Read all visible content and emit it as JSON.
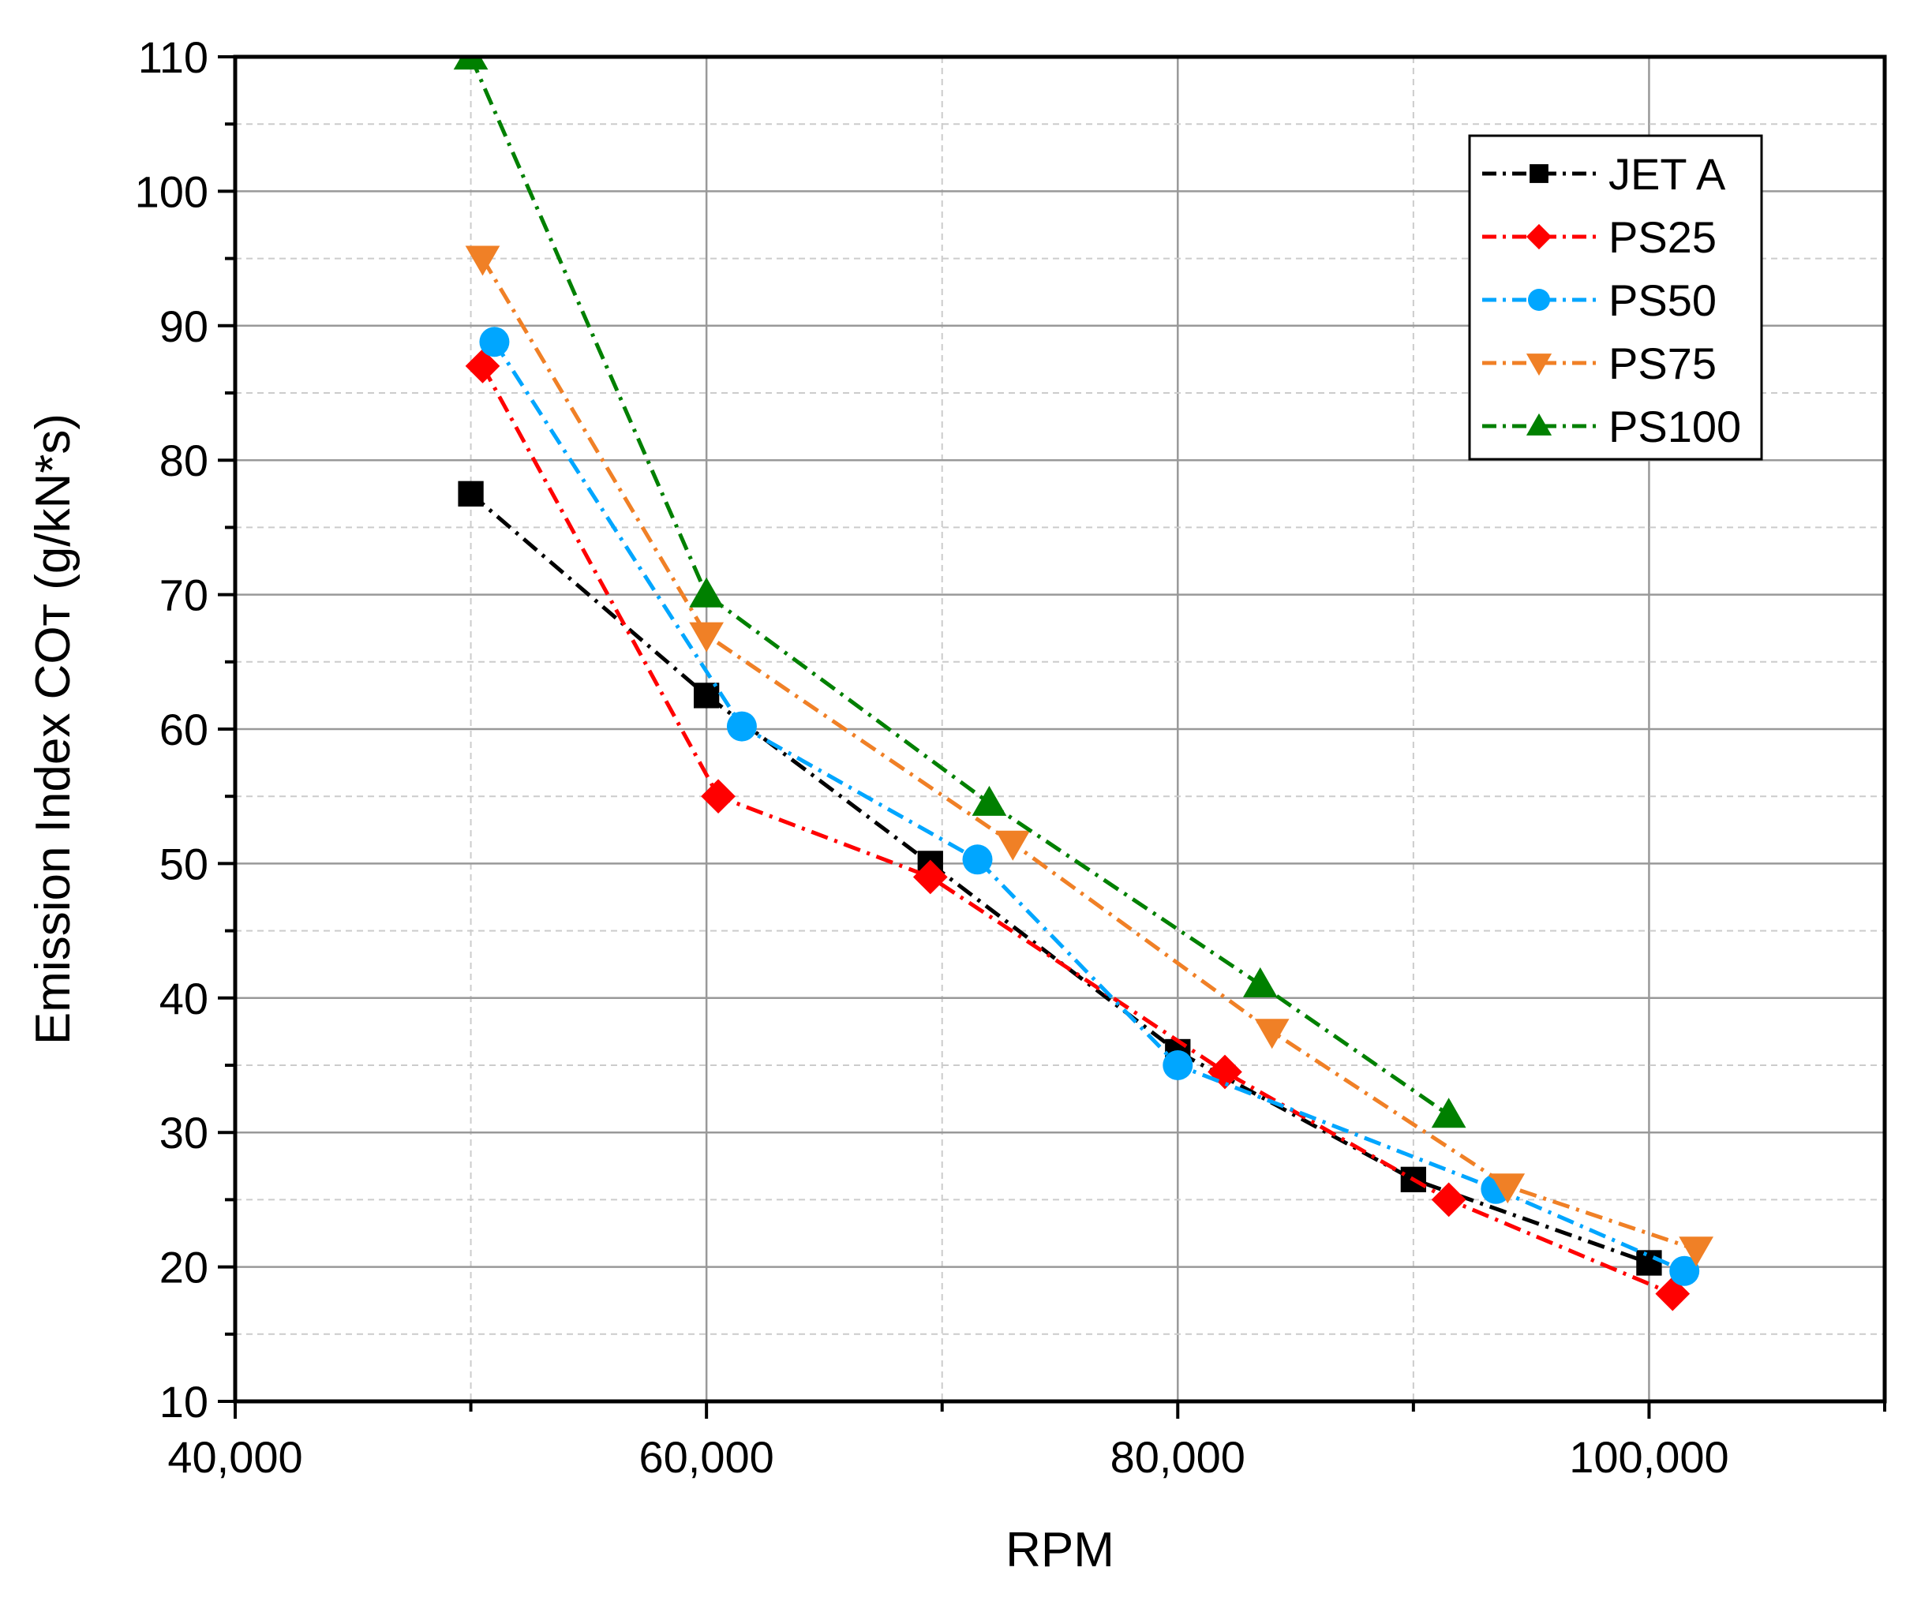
{
  "chart_data": {
    "type": "line",
    "title": "",
    "xlabel": "RPM",
    "ylabel": "Emission Index COᴛ (g/kN*s)",
    "xlim": [
      40000,
      110000
    ],
    "ylim": [
      10,
      110
    ],
    "x_ticks": [
      40000,
      60000,
      80000,
      100000
    ],
    "x_tick_labels": [
      "40,000",
      "60,000",
      "80,000",
      "100,000"
    ],
    "y_ticks": [
      10,
      20,
      30,
      40,
      50,
      60,
      70,
      80,
      90,
      100,
      110
    ],
    "y_tick_labels": [
      "10",
      "20",
      "30",
      "40",
      "50",
      "60",
      "70",
      "80",
      "90",
      "100",
      "110"
    ],
    "grid": true,
    "legend_position": "top-right",
    "series": [
      {
        "name": "JET A",
        "color": "#000000",
        "marker": "square",
        "x": [
          50000,
          60000,
          69500,
          80000,
          90000,
          100000
        ],
        "y": [
          77.5,
          62.5,
          50.0,
          36.0,
          26.5,
          20.3
        ]
      },
      {
        "name": "PS25",
        "color": "#ff0000",
        "marker": "diamond",
        "x": [
          50500,
          60500,
          69500,
          82000,
          91500,
          101000
        ],
        "y": [
          87.0,
          55.0,
          49.0,
          34.5,
          25.0,
          18.0
        ]
      },
      {
        "name": "PS50",
        "color": "#00a6ff",
        "marker": "circle",
        "x": [
          51000,
          61500,
          71500,
          80000,
          93500,
          101500
        ],
        "y": [
          88.8,
          60.2,
          50.3,
          35.0,
          25.8,
          19.7
        ]
      },
      {
        "name": "PS75",
        "color": "#f08026",
        "marker": "triangle-down",
        "x": [
          50500,
          60000,
          73000,
          84000,
          94000,
          102000
        ],
        "y": [
          95.0,
          67.0,
          51.5,
          37.5,
          26.0,
          21.3
        ]
      },
      {
        "name": "PS100",
        "color": "#008000",
        "marker": "triangle-up",
        "x": [
          50000,
          60000,
          72000,
          83500,
          91500
        ],
        "y": [
          110.0,
          70.0,
          54.5,
          41.0,
          31.3
        ]
      }
    ]
  }
}
